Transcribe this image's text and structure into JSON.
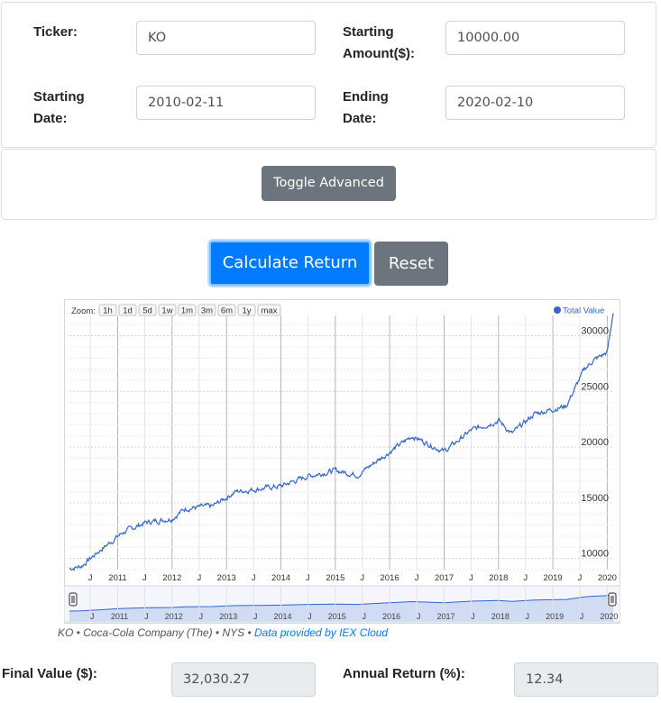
{
  "form": {
    "ticker_label": "Ticker:",
    "ticker_value": "KO",
    "amount_label_1": "Starting",
    "amount_label_2": "Amount($):",
    "amount_value": "10000.00",
    "start_label_1": "Starting",
    "start_label_2": "Date:",
    "start_value": "2010-02-11",
    "end_label_1": "Ending",
    "end_label_2": "Date:",
    "end_value": "2020-02-10"
  },
  "buttons": {
    "toggle_advanced": "Toggle Advanced",
    "calculate": "Calculate Return",
    "reset": "Reset"
  },
  "chart": {
    "zoom_label": "Zoom:",
    "zoom_buttons": [
      "1h",
      "1d",
      "5d",
      "1w",
      "1m",
      "3m",
      "6m",
      "1y",
      "max"
    ],
    "legend": "Total Value",
    "series_color": "#3366cc"
  },
  "chart_data": {
    "type": "line",
    "series": [
      {
        "name": "Total Value",
        "x": [
          "2010-02-11",
          "2010-05-01",
          "2010-09-01",
          "2011-02-01",
          "2011-07-01",
          "2012-01-01",
          "2012-04-01",
          "2012-10-01",
          "2013-03-01",
          "2013-07-01",
          "2014-01-01",
          "2014-07-01",
          "2015-01-01",
          "2015-06-01",
          "2015-10-01",
          "2016-06-01",
          "2017-01-01",
          "2017-07-01",
          "2018-01-01",
          "2018-04-01",
          "2018-09-01",
          "2019-04-01",
          "2019-08-01",
          "2019-10-01",
          "2020-01-01",
          "2020-02-10"
        ],
        "values": [
          9100,
          9300,
          10700,
          12300,
          13200,
          13600,
          14500,
          14700,
          16000,
          16200,
          16500,
          17400,
          17900,
          17500,
          18700,
          21000,
          19600,
          21500,
          22400,
          21200,
          23000,
          23700,
          27000,
          27800,
          28500,
          32030
        ]
      }
    ],
    "ylim": [
      9000,
      31500
    ],
    "yticks": [
      "10000",
      "15000",
      "20000",
      "25000",
      "30000"
    ],
    "xtick_labels": [
      "J",
      "2011",
      "J",
      "2012",
      "J",
      "2013",
      "J",
      "2014",
      "J",
      "2015",
      "J",
      "2016",
      "J",
      "2017",
      "J",
      "2018",
      "J",
      "2019",
      "J",
      "2020"
    ],
    "navigator_labels": [
      "J",
      "2011",
      "J",
      "2012",
      "J",
      "2013",
      "J",
      "2014",
      "J",
      "2015",
      "J",
      "2016",
      "J",
      "2017",
      "J",
      "2018",
      "J",
      "2019",
      "J",
      "2020"
    ],
    "legend_position": "top-right",
    "grid": true
  },
  "caption": {
    "text": "KO • Coca-Cola Company (The) • NYS • ",
    "link": "Data provided by IEX Cloud"
  },
  "results": {
    "final_label": "Final Value ($):",
    "final_value": "32,030.27",
    "annual_label": "Annual Return (%):",
    "annual_value": "12.34"
  }
}
